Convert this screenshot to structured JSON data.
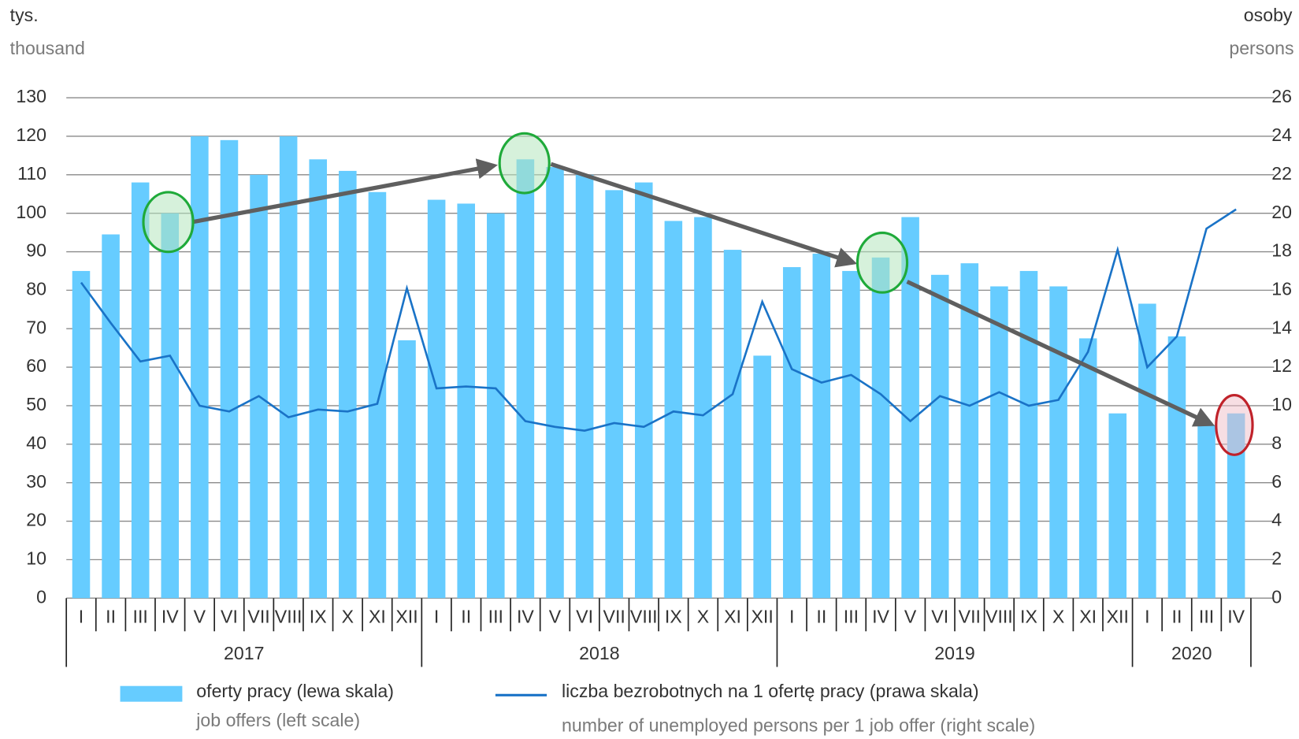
{
  "chart_data": {
    "type": "bar-line",
    "y_unit": "tys.",
    "y_unit_en": "thousand",
    "y2_unit": "osoby",
    "y2_unit_en": "persons",
    "categories": [
      "I",
      "II",
      "III",
      "IV",
      "V",
      "VI",
      "VII",
      "VIII",
      "IX",
      "X",
      "XI",
      "XII",
      "I",
      "II",
      "III",
      "IV",
      "V",
      "VI",
      "VII",
      "VIII",
      "IX",
      "X",
      "XI",
      "XII",
      "I",
      "II",
      "III",
      "IV",
      "V",
      "VI",
      "VII",
      "VIII",
      "IX",
      "X",
      "XI",
      "XII",
      "I",
      "II",
      "III",
      "IV"
    ],
    "years": [
      "2017",
      "2018",
      "2019",
      "2020"
    ],
    "ylim": [
      0,
      130
    ],
    "yticks": [
      0,
      10,
      20,
      30,
      40,
      50,
      60,
      70,
      80,
      90,
      100,
      110,
      120,
      130
    ],
    "y2lim": [
      0,
      26
    ],
    "y2ticks": [
      0,
      2,
      4,
      6,
      8,
      10,
      12,
      14,
      16,
      18,
      20,
      22,
      24,
      26
    ],
    "grid": true,
    "series": [
      {
        "name": "oferty pracy (lewa skala)",
        "name_en": "job offers (left scale)",
        "type": "bar",
        "color": "#66ccff",
        "values": [
          85,
          94.5,
          108,
          100,
          120,
          119,
          110,
          120,
          114,
          111,
          105.5,
          67,
          103.5,
          102.5,
          100,
          114,
          112,
          110,
          106,
          108,
          98,
          99,
          90.5,
          63,
          86,
          89.5,
          85,
          88.5,
          99,
          84,
          87,
          81,
          85,
          81,
          67.5,
          48,
          76.5,
          68,
          45,
          48
        ]
      },
      {
        "name": "liczba bezrobotnych na 1 ofertę pracy (prawa skala)",
        "name_en": "number of unemployed persons per 1 job offer (right scale)",
        "type": "line",
        "axis": "y2",
        "color": "#1a73c7",
        "values": [
          16.4,
          14.3,
          12.3,
          12.6,
          10.0,
          9.7,
          10.5,
          9.4,
          9.8,
          9.7,
          10.1,
          16.1,
          10.9,
          11.0,
          10.9,
          9.2,
          8.9,
          8.7,
          9.1,
          8.9,
          9.7,
          9.5,
          10.6,
          15.4,
          11.9,
          11.2,
          11.6,
          10.6,
          9.2,
          10.5,
          10.0,
          10.7,
          10.0,
          10.3,
          12.8,
          18.1,
          12.0,
          13.6,
          19.2,
          20.2
        ]
      }
    ]
  }
}
